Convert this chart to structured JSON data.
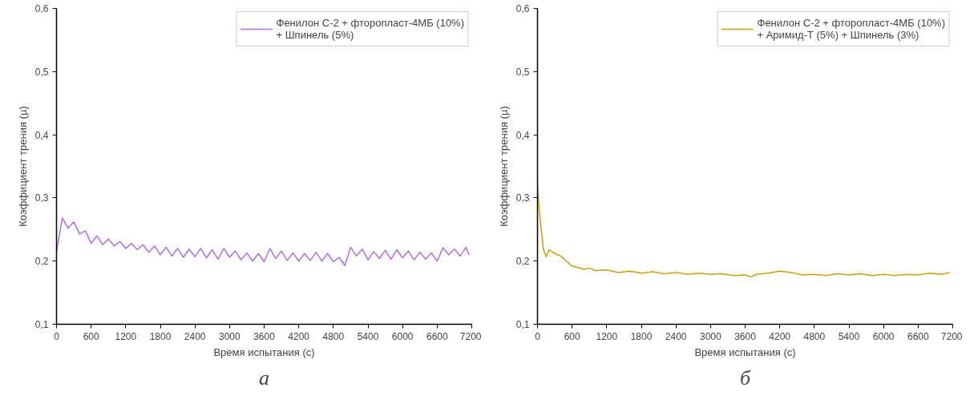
{
  "chart_data": [
    {
      "type": "line",
      "xlabel": "Время испытания (с)",
      "ylabel": "Коэффициент трения (µ)",
      "annotations": [
        "а"
      ],
      "legend": "top right",
      "grid": false,
      "line_style": "solid",
      "xlim": [
        0,
        7200
      ],
      "ylim": [
        0.1,
        0.6
      ],
      "xticks": [
        0,
        600,
        1200,
        1800,
        2400,
        3000,
        3600,
        4200,
        4800,
        5400,
        6000,
        6600,
        7200
      ],
      "yticks": [
        {
          "value": 0.1,
          "label": "0,1"
        },
        {
          "value": 0.2,
          "label": "0,2"
        },
        {
          "value": 0.3,
          "label": "0,3"
        },
        {
          "value": 0.4,
          "label": "0,4"
        },
        {
          "value": 0.5,
          "label": "0,5"
        },
        {
          "value": 0.6,
          "label": "0,6"
        }
      ],
      "series": [
        {
          "name": "Фенилон С-2 + фторопласт-4МБ (10%)\n+ Шпинель (5%)",
          "color": "#b06fdc",
          "x": [
            0,
            100,
            200,
            300,
            400,
            500,
            600,
            700,
            800,
            900,
            1000,
            1100,
            1200,
            1300,
            1400,
            1500,
            1600,
            1700,
            1800,
            1900,
            2000,
            2100,
            2200,
            2300,
            2400,
            2500,
            2600,
            2700,
            2800,
            2900,
            3000,
            3100,
            3200,
            3300,
            3400,
            3500,
            3600,
            3700,
            3800,
            3900,
            4000,
            4100,
            4200,
            4300,
            4400,
            4500,
            4600,
            4700,
            4800,
            4900,
            5000,
            5100,
            5200,
            5300,
            5400,
            5500,
            5600,
            5700,
            5800,
            5900,
            6000,
            6100,
            6200,
            6300,
            6400,
            6500,
            6600,
            6700,
            6800,
            6900,
            7000,
            7100,
            7150
          ],
          "values": [
            0.215,
            0.268,
            0.252,
            0.262,
            0.243,
            0.248,
            0.228,
            0.24,
            0.226,
            0.235,
            0.224,
            0.231,
            0.22,
            0.228,
            0.218,
            0.226,
            0.214,
            0.224,
            0.21,
            0.222,
            0.208,
            0.22,
            0.206,
            0.219,
            0.207,
            0.22,
            0.205,
            0.218,
            0.203,
            0.22,
            0.206,
            0.216,
            0.202,
            0.213,
            0.2,
            0.212,
            0.199,
            0.22,
            0.204,
            0.216,
            0.201,
            0.213,
            0.2,
            0.212,
            0.201,
            0.214,
            0.2,
            0.212,
            0.199,
            0.206,
            0.193,
            0.222,
            0.208,
            0.219,
            0.202,
            0.215,
            0.204,
            0.217,
            0.203,
            0.218,
            0.205,
            0.216,
            0.202,
            0.214,
            0.203,
            0.213,
            0.2,
            0.221,
            0.21,
            0.219,
            0.208,
            0.222,
            0.21
          ]
        }
      ]
    },
    {
      "type": "line",
      "xlabel": "Время испытания (с)",
      "ylabel": "Коэффициент трения (µ)",
      "annotations": [
        "б"
      ],
      "legend": "top right",
      "grid": false,
      "line_style": "solid",
      "xlim": [
        0,
        7200
      ],
      "ylim": [
        0.1,
        0.6
      ],
      "xticks": [
        0,
        600,
        1200,
        1800,
        2400,
        3000,
        3600,
        4200,
        4800,
        5400,
        6000,
        6600,
        7200
      ],
      "yticks": [
        {
          "value": 0.1,
          "label": "0,1"
        },
        {
          "value": 0.2,
          "label": "0,2"
        },
        {
          "value": 0.3,
          "label": "0,3"
        },
        {
          "value": 0.4,
          "label": "0,4"
        },
        {
          "value": 0.5,
          "label": "0,5"
        },
        {
          "value": 0.6,
          "label": "0,6"
        }
      ],
      "series": [
        {
          "name": "Фенилон С-2 + фторопласт-4МБ (10%)\n+ Аримид-Т (5%) + Шпинель (3%)",
          "color": "#c9a010",
          "x": [
            0,
            30,
            100,
            150,
            200,
            300,
            400,
            500,
            600,
            700,
            800,
            900,
            1000,
            1200,
            1400,
            1600,
            1800,
            2000,
            2200,
            2400,
            2600,
            2800,
            3000,
            3200,
            3400,
            3600,
            3700,
            3800,
            4000,
            4200,
            4400,
            4600,
            4800,
            5000,
            5200,
            5400,
            5600,
            5800,
            6000,
            6200,
            6400,
            6600,
            6800,
            7000,
            7150
          ],
          "values": [
            0.32,
            0.28,
            0.22,
            0.207,
            0.218,
            0.212,
            0.208,
            0.2,
            0.192,
            0.19,
            0.187,
            0.189,
            0.185,
            0.186,
            0.182,
            0.184,
            0.181,
            0.183,
            0.18,
            0.182,
            0.179,
            0.181,
            0.179,
            0.18,
            0.177,
            0.178,
            0.175,
            0.179,
            0.181,
            0.184,
            0.182,
            0.178,
            0.179,
            0.177,
            0.18,
            0.178,
            0.18,
            0.177,
            0.179,
            0.177,
            0.179,
            0.178,
            0.181,
            0.179,
            0.182
          ]
        }
      ]
    }
  ]
}
